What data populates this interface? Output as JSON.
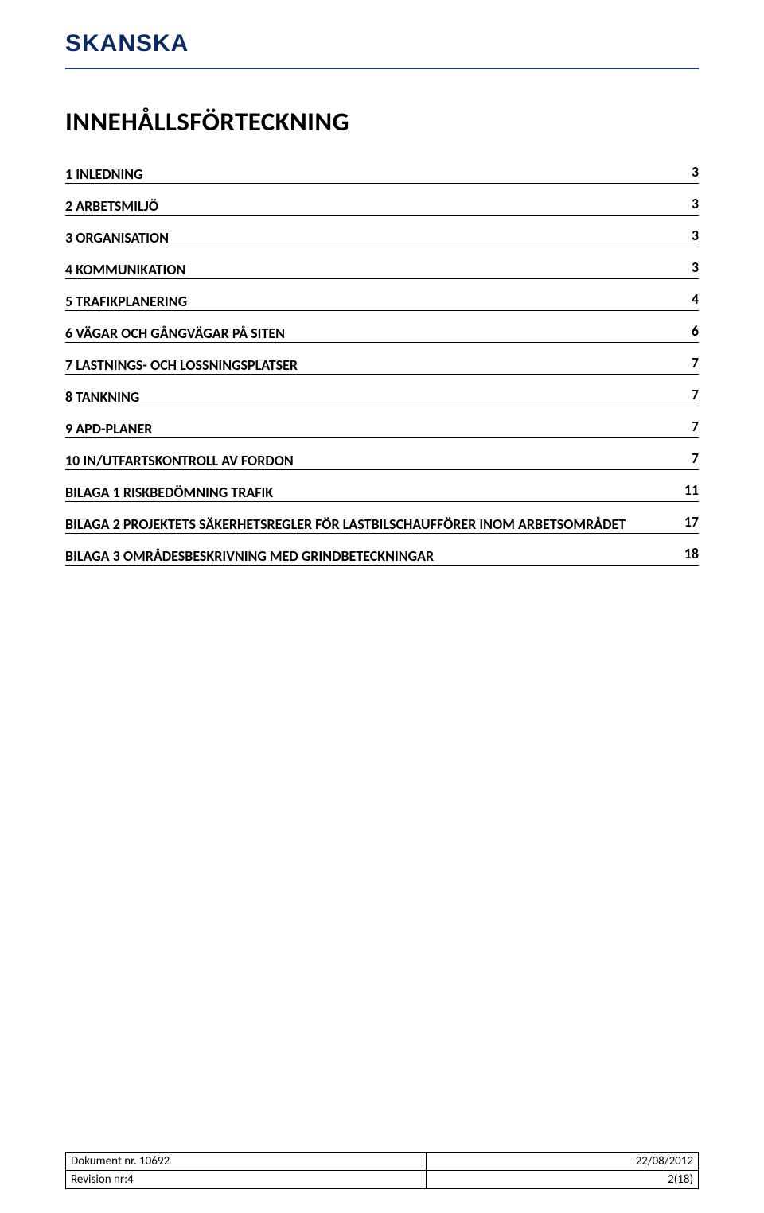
{
  "logo": {
    "text": "SKANSKA",
    "text_color": "#0a2a66",
    "rule_color": "#1a3a6e"
  },
  "title": "INNEHÅLLSFÖRTECKNING",
  "toc": [
    {
      "label": "1 INLEDNING",
      "page": "3"
    },
    {
      "label": "2 ARBETSMILJÖ",
      "page": "3"
    },
    {
      "label": "3 ORGANISATION",
      "page": "3"
    },
    {
      "label": "4 KOMMUNIKATION",
      "page": "3"
    },
    {
      "label": "5 TRAFIKPLANERING",
      "page": "4"
    },
    {
      "label": "6 VÄGAR OCH GÅNGVÄGAR PÅ SITEN",
      "page": "6"
    },
    {
      "label": "7 LASTNINGS- OCH LOSSNINGSPLATSER",
      "page": "7"
    },
    {
      "label": "8 TANKNING",
      "page": "7"
    },
    {
      "label": "9 APD-PLANER",
      "page": "7"
    },
    {
      "label": "10 IN/UTFARTSKONTROLL AV FORDON",
      "page": "7"
    },
    {
      "label": "BILAGA 1 RISKBEDÖMNING TRAFIK",
      "page": "11"
    },
    {
      "label": "BILAGA 2 PROJEKTETS SÄKERHETSREGLER FÖR LASTBILSCHAUFFÖRER INOM ARBETSOMRÅDET",
      "page": "17"
    },
    {
      "label": "BILAGA 3 OMRÅDESBESKRIVNING MED GRINDBETECKNINGAR",
      "page": "18"
    }
  ],
  "footer": {
    "doc_label": "Dokument nr. 10692",
    "date": "22/08/2012",
    "rev_label": "Revision nr:4",
    "page": "2(18)"
  },
  "style": {
    "title_fontsize": 33,
    "toc_fontsize": 18,
    "toc_fontweight": 700,
    "footer_fontsize": 15,
    "background_color": "#ffffff",
    "text_color": "#000000"
  }
}
